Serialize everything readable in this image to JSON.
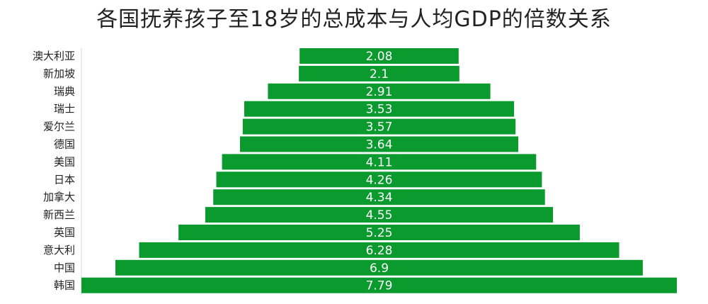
{
  "chart_data": {
    "type": "bar",
    "orientation": "horizontal",
    "layout": "centered-funnel",
    "title": "各国抚养孩子至18岁的总成本与人均GDP的倍数关系",
    "categories": [
      "澳大利亚",
      "新加坡",
      "瑞典",
      "瑞士",
      "爱尔兰",
      "德国",
      "美国",
      "日本",
      "加拿大",
      "新西兰",
      "英国",
      "意大利",
      "中国",
      "韩国"
    ],
    "values": [
      2.08,
      2.1,
      2.91,
      3.53,
      3.57,
      3.64,
      4.11,
      4.26,
      4.34,
      4.55,
      5.25,
      6.28,
      6.9,
      7.79
    ],
    "value_labels": [
      "2.08",
      "2.1",
      "2.91",
      "3.53",
      "3.57",
      "3.64",
      "4.11",
      "4.26",
      "4.34",
      "4.55",
      "5.25",
      "6.28",
      "6.9",
      "7.79"
    ],
    "bar_color": "#0a9a2e",
    "grid": false,
    "legend": "none"
  }
}
